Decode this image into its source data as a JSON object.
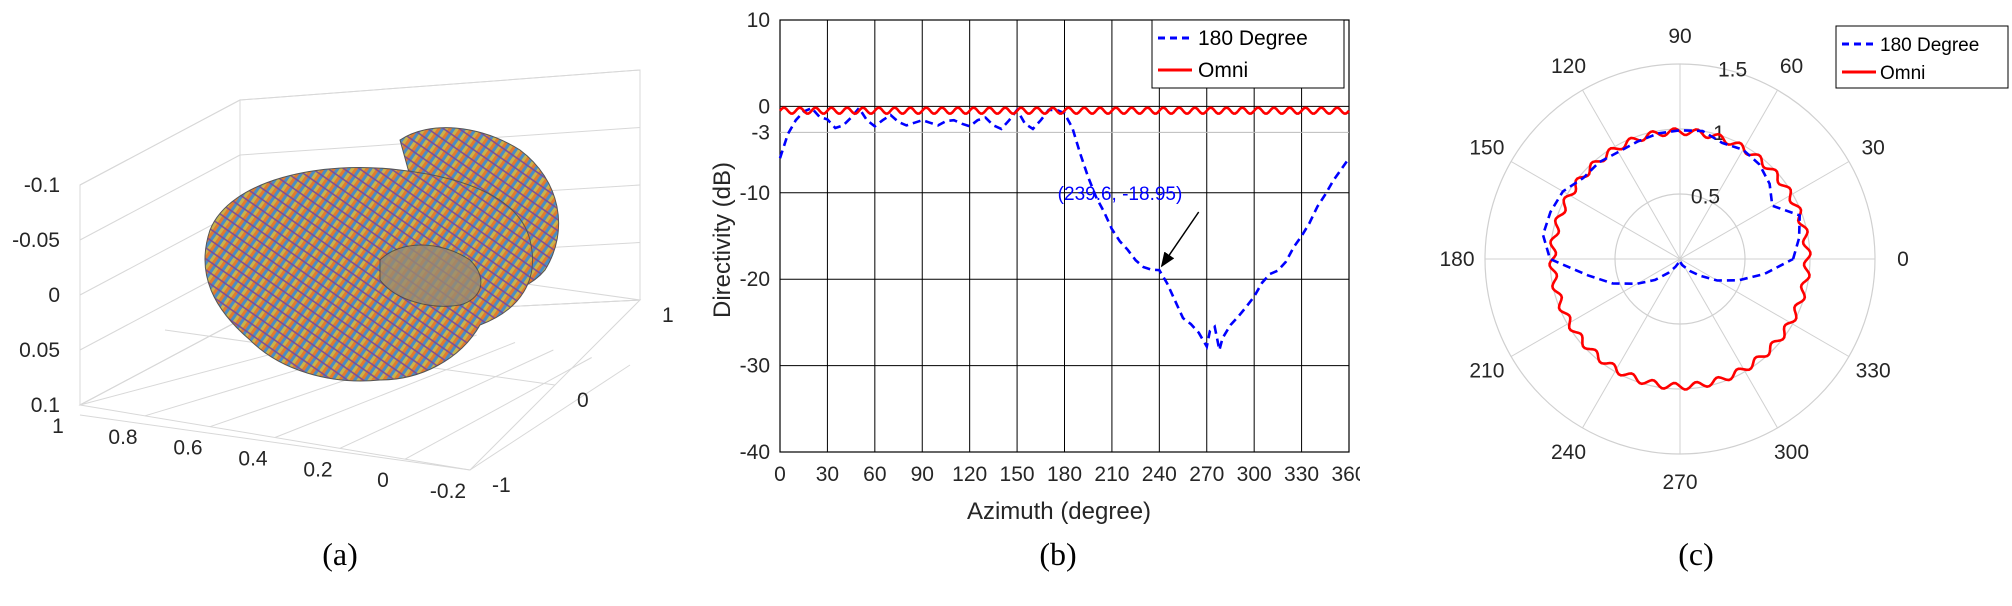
{
  "captions": {
    "a": "(a)",
    "b": "(b)",
    "c": "(c)"
  },
  "colors": {
    "dir180": "#0000ff",
    "omni": "#ff0000",
    "grid": "#000000",
    "polarGrid": "#d0d0d0"
  },
  "chart_data": [
    {
      "id": "a",
      "type": "surface3d",
      "z_ticks": [
        "-0.1",
        "-0.05",
        "0",
        "0.05",
        "0.1"
      ],
      "x_ticks": [
        "1",
        "0.8",
        "0.6",
        "0.4",
        "0.2",
        "0",
        "-0.2"
      ],
      "y_ticks": [
        "1",
        "0",
        "-1"
      ],
      "grid": true
    },
    {
      "id": "b",
      "type": "line",
      "xlabel": "Azimuth (degree)",
      "ylabel": "Directivity (dB)",
      "xlim": [
        0,
        360
      ],
      "ylim": [
        -40,
        10
      ],
      "x_ticks": [
        "0",
        "30",
        "60",
        "90",
        "120",
        "150",
        "180",
        "210",
        "240",
        "270",
        "300",
        "330",
        "360"
      ],
      "y_ticks": [
        "10",
        "0",
        "-3",
        "-10",
        "-20",
        "-30",
        "-40"
      ],
      "grid": true,
      "legend": "top-right",
      "annotation": {
        "text": "(239.6, -18.95)",
        "x": 239.6,
        "y": -18.95
      },
      "series": [
        {
          "name": "180 Degree",
          "style": "dashed",
          "x": [
            0,
            5,
            10,
            15,
            20,
            25,
            30,
            35,
            40,
            45,
            50,
            55,
            60,
            65,
            70,
            75,
            80,
            85,
            90,
            95,
            100,
            105,
            110,
            115,
            120,
            125,
            130,
            135,
            140,
            145,
            150,
            155,
            160,
            165,
            170,
            175,
            180,
            185,
            190,
            195,
            200,
            205,
            210,
            215,
            220,
            225,
            230,
            235,
            240,
            245,
            250,
            255,
            260,
            265,
            270,
            272,
            275,
            278,
            280,
            285,
            290,
            295,
            300,
            305,
            310,
            315,
            320,
            325,
            330,
            335,
            340,
            345,
            350,
            355,
            360
          ],
          "y": [
            -6,
            -3.2,
            -1.6,
            -0.6,
            -0.2,
            -1.2,
            -1.5,
            -2.5,
            -2.2,
            -1.3,
            -0.2,
            -1.6,
            -2.3,
            -1.6,
            -1.0,
            -1.8,
            -2.2,
            -1.9,
            -1.6,
            -1.9,
            -2.2,
            -1.7,
            -1.6,
            -2.0,
            -2.3,
            -1.6,
            -1.3,
            -2.2,
            -2.6,
            -1.6,
            -0.4,
            -2.0,
            -2.6,
            -1.6,
            -0.4,
            -0.4,
            -0.8,
            -2.5,
            -5.5,
            -8.2,
            -10.5,
            -12.2,
            -14.2,
            -15.6,
            -16.6,
            -17.8,
            -18.6,
            -18.9,
            -18.95,
            -20.5,
            -22.5,
            -24.5,
            -25.2,
            -26.2,
            -27.8,
            -26.0,
            -25.5,
            -28.2,
            -26.8,
            -25.3,
            -24.3,
            -23.2,
            -22.0,
            -20.4,
            -19.4,
            -19.0,
            -18.0,
            -16.3,
            -15.0,
            -13.5,
            -11.6,
            -10.2,
            -8.6,
            -7.3,
            -6.0
          ]
        },
        {
          "name": "Omni",
          "style": "solid",
          "mean": -0.5,
          "ripple": 0.35,
          "period": 10
        }
      ]
    },
    {
      "id": "c",
      "type": "polar",
      "angle_ticks": [
        "0",
        "30",
        "60",
        "90",
        "120",
        "150",
        "180",
        "210",
        "240",
        "270",
        "300",
        "330"
      ],
      "radius_ticks": [
        "0.5",
        "1",
        "1.5"
      ],
      "rlim": [
        0,
        1.5
      ],
      "legend": "top-right",
      "series": [
        {
          "name": "180 Degree",
          "style": "dashed",
          "theta": [
            0,
            10,
            20,
            30,
            40,
            50,
            60,
            70,
            80,
            90,
            100,
            110,
            120,
            130,
            140,
            150,
            160,
            170,
            180,
            190,
            200,
            210,
            220,
            230,
            240,
            250,
            260,
            270,
            280,
            290,
            300,
            310,
            320,
            330,
            340,
            350,
            360
          ],
          "r": [
            0.87,
            0.93,
            0.98,
            0.82,
            0.9,
            0.95,
            0.97,
            0.95,
            1.0,
            0.99,
            0.98,
            0.96,
            0.95,
            0.97,
            0.97,
            1.04,
            1.06,
            1.07,
            1.0,
            0.72,
            0.55,
            0.38,
            0.25,
            0.14,
            0.07,
            0.03,
            0.01,
            0.02,
            0.03,
            0.05,
            0.07,
            0.12,
            0.2,
            0.33,
            0.48,
            0.66,
            0.87
          ]
        },
        {
          "name": "Omni",
          "style": "solid",
          "mean": 0.98,
          "ripple": 0.025,
          "period": 10
        }
      ]
    }
  ]
}
